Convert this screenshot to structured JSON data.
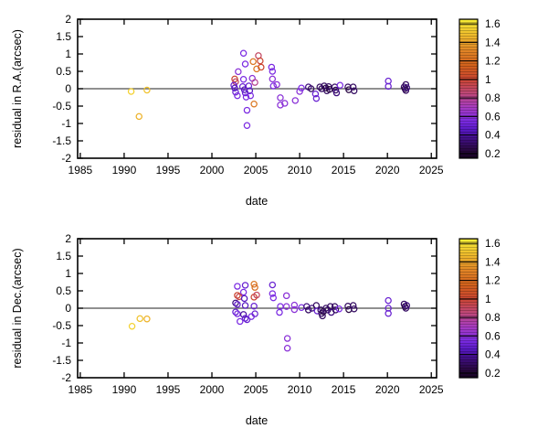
{
  "figure": {
    "background": "#ffffff"
  },
  "style": {
    "frame_color": "#000000",
    "zero_line_color": "#4d4d4d",
    "tick_label_color": "#000000",
    "point_radius": 3.1,
    "point_stroke_width": 1.25
  },
  "colorbar": {
    "range": [
      0.15,
      1.65
    ],
    "ticks": [
      0.2,
      0.4,
      0.6,
      0.8,
      1,
      1.2,
      1.4,
      1.6
    ],
    "tick_labels": [
      "0.2",
      "0.4",
      "0.6",
      "0.8",
      "1",
      "1.2",
      "1.4",
      "1.6"
    ],
    "palette_stops": [
      [
        0.15,
        "#160320"
      ],
      [
        0.25,
        "#2b0945"
      ],
      [
        0.35,
        "#3e0e7e"
      ],
      [
        0.45,
        "#5618c0"
      ],
      [
        0.55,
        "#7b2be2"
      ],
      [
        0.7,
        "#a83cc0"
      ],
      [
        0.85,
        "#bf4878"
      ],
      [
        1.0,
        "#cb4532"
      ],
      [
        1.15,
        "#d2611c"
      ],
      [
        1.3,
        "#e08226"
      ],
      [
        1.45,
        "#edb32b"
      ],
      [
        1.65,
        "#f8ef36"
      ]
    ]
  },
  "chart_data": [
    {
      "type": "scatter",
      "panel": "top",
      "xlabel": "date",
      "ylabel": "residual in R.A.(arcsec)",
      "xlim": [
        1984.7,
        2025.6
      ],
      "ylim": [
        -2,
        2
      ],
      "xticks": [
        1985,
        1990,
        1995,
        2000,
        2005,
        2010,
        2015,
        2020,
        2025
      ],
      "xtick_labels": [
        "1985",
        "1990",
        "1995",
        "2000",
        "2005",
        "2010",
        "2015",
        "2020",
        "2025"
      ],
      "yticks": [
        2,
        1.5,
        1,
        0.5,
        0,
        -0.5,
        -1,
        -1.5,
        -2
      ],
      "ytick_labels": [
        "2",
        "1.5",
        "1",
        "0.5",
        "0",
        "-0.5",
        "-1",
        "-1.5",
        "-2"
      ],
      "zero_line": 0,
      "points_format": [
        "date_year",
        "residual_arcsec",
        "color_value"
      ],
      "points": [
        [
          1990.8,
          -0.08,
          1.55
        ],
        [
          1992.6,
          -0.04,
          1.5
        ],
        [
          1991.7,
          -0.8,
          1.45
        ],
        [
          2003.6,
          1.02,
          0.55
        ],
        [
          2005.3,
          0.95,
          0.9
        ],
        [
          2005.5,
          0.8,
          1.0
        ],
        [
          2004.7,
          0.78,
          1.25
        ],
        [
          2005.6,
          0.62,
          1.0
        ],
        [
          2005.1,
          0.57,
          1.25
        ],
        [
          2003.8,
          0.71,
          0.55
        ],
        [
          2003.0,
          0.49,
          0.6
        ],
        [
          2004.6,
          0.3,
          0.6
        ],
        [
          2004.9,
          0.18,
          0.8
        ],
        [
          2002.6,
          0.28,
          1.0
        ],
        [
          2002.7,
          0.2,
          0.9
        ],
        [
          2003.6,
          0.27,
          0.55
        ],
        [
          2002.5,
          0.1,
          0.5
        ],
        [
          2002.6,
          0.02,
          0.45
        ],
        [
          2002.7,
          -0.1,
          0.5
        ],
        [
          2002.9,
          -0.2,
          0.55
        ],
        [
          2003.5,
          0.06,
          0.5
        ],
        [
          2003.7,
          -0.03,
          0.45
        ],
        [
          2003.8,
          -0.12,
          0.5
        ],
        [
          2003.9,
          -0.24,
          0.55
        ],
        [
          2004.2,
          0.08,
          0.5
        ],
        [
          2004.3,
          -0.06,
          0.45
        ],
        [
          2004.4,
          -0.2,
          0.55
        ],
        [
          2004.0,
          -0.62,
          0.55
        ],
        [
          2004.0,
          -1.06,
          0.55
        ],
        [
          2004.8,
          -0.44,
          1.25
        ],
        [
          2006.8,
          0.62,
          0.55
        ],
        [
          2006.9,
          0.5,
          0.55
        ],
        [
          2006.9,
          0.28,
          0.6
        ],
        [
          2007.0,
          0.08,
          0.55
        ],
        [
          2007.4,
          0.12,
          0.6
        ],
        [
          2007.8,
          -0.26,
          0.6
        ],
        [
          2007.8,
          -0.47,
          0.6
        ],
        [
          2008.3,
          -0.42,
          0.6
        ],
        [
          2009.5,
          -0.34,
          0.6
        ],
        [
          2010.0,
          -0.08,
          0.6
        ],
        [
          2010.2,
          0.02,
          0.55
        ],
        [
          2011.0,
          0.05,
          0.35
        ],
        [
          2011.3,
          0.0,
          0.3
        ],
        [
          2011.8,
          -0.15,
          0.5
        ],
        [
          2011.9,
          -0.28,
          0.5
        ],
        [
          2012.3,
          0.05,
          0.3
        ],
        [
          2012.5,
          0.0,
          0.3
        ],
        [
          2012.8,
          0.08,
          0.3
        ],
        [
          2013.0,
          0.02,
          0.25
        ],
        [
          2013.1,
          -0.06,
          0.3
        ],
        [
          2013.3,
          0.06,
          0.3
        ],
        [
          2013.4,
          -0.02,
          0.25
        ],
        [
          2014.0,
          0.05,
          0.3
        ],
        [
          2014.1,
          -0.04,
          0.3
        ],
        [
          2014.2,
          -0.12,
          0.35
        ],
        [
          2014.6,
          0.1,
          0.55
        ],
        [
          2015.5,
          0.05,
          0.3
        ],
        [
          2015.6,
          -0.03,
          0.25
        ],
        [
          2016.1,
          0.05,
          0.3
        ],
        [
          2016.2,
          -0.06,
          0.3
        ],
        [
          2020.1,
          0.22,
          0.5
        ],
        [
          2020.1,
          0.07,
          0.5
        ],
        [
          2021.9,
          0.05,
          0.3
        ],
        [
          2022.0,
          0.0,
          0.25
        ],
        [
          2022.1,
          0.12,
          0.3
        ],
        [
          2022.1,
          -0.05,
          0.3
        ],
        [
          2022.2,
          0.03,
          0.35
        ]
      ]
    },
    {
      "type": "scatter",
      "panel": "bottom",
      "xlabel": "date",
      "ylabel": "residual in Dec.(arcsec)",
      "xlim": [
        1984.7,
        2025.6
      ],
      "ylim": [
        -2,
        2
      ],
      "xticks": [
        1985,
        1990,
        1995,
        2000,
        2005,
        2010,
        2015,
        2020,
        2025
      ],
      "xtick_labels": [
        "1985",
        "1990",
        "1995",
        "2000",
        "2005",
        "2010",
        "2015",
        "2020",
        "2025"
      ],
      "yticks": [
        2,
        1.5,
        1,
        0.5,
        0,
        -0.5,
        -1,
        -1.5,
        -2
      ],
      "ytick_labels": [
        "2",
        "1.5",
        "1",
        "0.5",
        "0",
        "-0.5",
        "-1",
        "-1.5",
        "-2"
      ],
      "zero_line": 0,
      "points_format": [
        "date_year",
        "residual_arcsec",
        "color_value"
      ],
      "points": [
        [
          1990.9,
          -0.52,
          1.55
        ],
        [
          1991.8,
          -0.3,
          1.5
        ],
        [
          1992.6,
          -0.31,
          1.45
        ],
        [
          2002.9,
          0.63,
          0.55
        ],
        [
          2003.8,
          0.66,
          0.5
        ],
        [
          2004.8,
          0.69,
          1.25
        ],
        [
          2004.9,
          0.6,
          1.2
        ],
        [
          2003.6,
          0.46,
          0.55
        ],
        [
          2002.9,
          0.37,
          1.0
        ],
        [
          2003.1,
          0.33,
          0.95
        ],
        [
          2003.7,
          0.28,
          0.45
        ],
        [
          2004.8,
          0.32,
          1.0
        ],
        [
          2005.1,
          0.38,
          0.9
        ],
        [
          2002.7,
          0.15,
          0.35
        ],
        [
          2002.9,
          0.11,
          0.5
        ],
        [
          2003.8,
          0.08,
          0.45
        ],
        [
          2004.8,
          0.06,
          0.5
        ],
        [
          2002.7,
          -0.11,
          0.5
        ],
        [
          2002.9,
          -0.16,
          0.55
        ],
        [
          2003.6,
          -0.18,
          0.4
        ],
        [
          2003.8,
          -0.29,
          0.5
        ],
        [
          2003.2,
          -0.38,
          0.55
        ],
        [
          2004.5,
          -0.24,
          0.55
        ],
        [
          2004.9,
          -0.16,
          0.5
        ],
        [
          2004.0,
          -0.33,
          0.5
        ],
        [
          2006.9,
          0.67,
          0.5
        ],
        [
          2006.9,
          0.42,
          0.55
        ],
        [
          2007.0,
          0.3,
          0.55
        ],
        [
          2008.5,
          0.36,
          0.6
        ],
        [
          2007.8,
          0.05,
          0.55
        ],
        [
          2008.5,
          0.05,
          0.6
        ],
        [
          2007.7,
          -0.12,
          0.55
        ],
        [
          2008.6,
          -0.87,
          0.6
        ],
        [
          2008.6,
          -1.15,
          0.6
        ],
        [
          2009.4,
          0.09,
          0.6
        ],
        [
          2009.4,
          -0.04,
          0.6
        ],
        [
          2010.2,
          0.02,
          0.55
        ],
        [
          2010.8,
          0.05,
          0.35
        ],
        [
          2011.0,
          -0.05,
          0.3
        ],
        [
          2011.4,
          0.0,
          0.35
        ],
        [
          2011.9,
          0.08,
          0.3
        ],
        [
          2012.0,
          -0.08,
          0.5
        ],
        [
          2012.4,
          -0.05,
          0.3
        ],
        [
          2012.5,
          -0.15,
          0.3
        ],
        [
          2012.6,
          -0.22,
          0.3
        ],
        [
          2012.7,
          -0.1,
          0.25
        ],
        [
          2013.0,
          0.0,
          0.3
        ],
        [
          2013.2,
          -0.05,
          0.3
        ],
        [
          2013.5,
          0.05,
          0.3
        ],
        [
          2013.6,
          -0.12,
          0.35
        ],
        [
          2014.0,
          0.05,
          0.3
        ],
        [
          2014.1,
          -0.05,
          0.3
        ],
        [
          2014.5,
          -0.02,
          0.55
        ],
        [
          2015.5,
          0.06,
          0.3
        ],
        [
          2015.6,
          -0.04,
          0.25
        ],
        [
          2016.1,
          0.08,
          0.3
        ],
        [
          2016.2,
          -0.02,
          0.3
        ],
        [
          2020.1,
          0.22,
          0.5
        ],
        [
          2020.1,
          0.0,
          0.5
        ],
        [
          2020.1,
          -0.15,
          0.5
        ],
        [
          2021.9,
          0.12,
          0.3
        ],
        [
          2022.0,
          0.05,
          0.25
        ],
        [
          2022.1,
          0.0,
          0.3
        ],
        [
          2022.2,
          0.08,
          0.35
        ]
      ]
    }
  ]
}
